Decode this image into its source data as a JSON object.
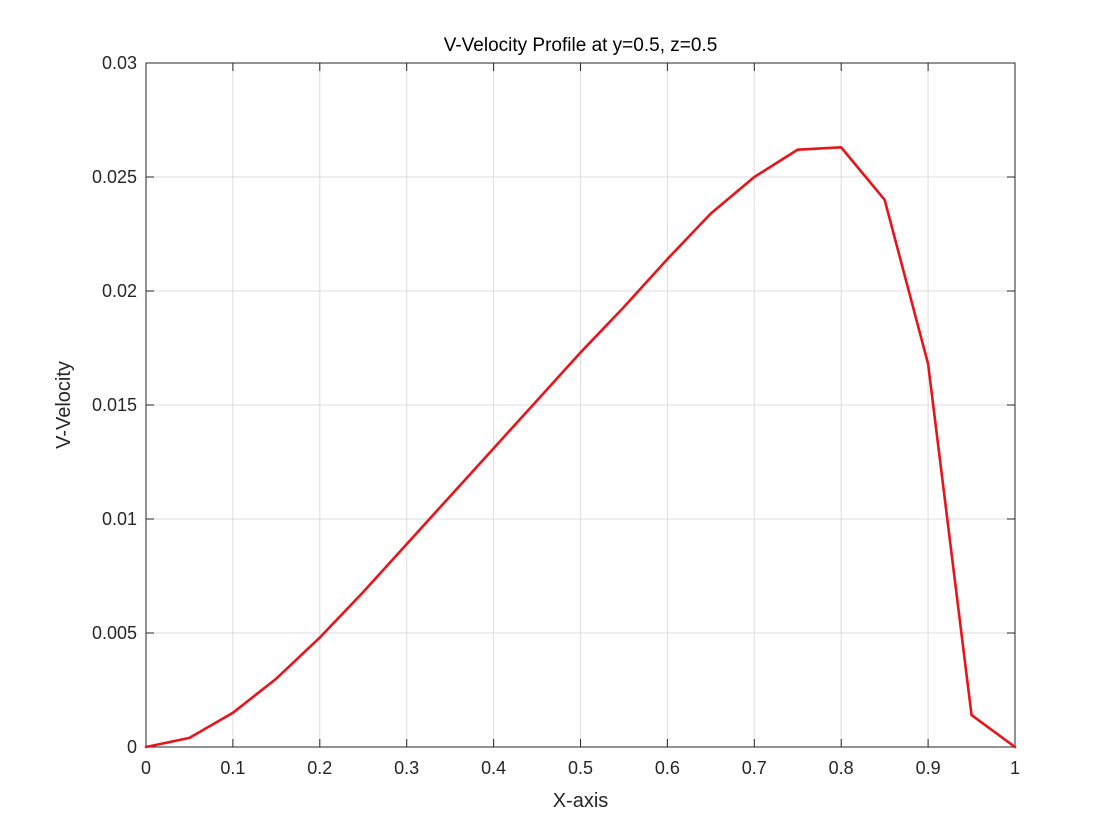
{
  "chart_data": {
    "type": "line",
    "title": "V-Velocity Profile at y=0.5, z=0.5",
    "xlabel": "X-axis",
    "ylabel": "V-Velocity",
    "xlim": [
      0,
      1
    ],
    "ylim": [
      0,
      0.03
    ],
    "xticks": [
      0,
      0.1,
      0.2,
      0.3,
      0.4,
      0.5,
      0.6,
      0.7,
      0.8,
      0.9,
      1
    ],
    "xtick_labels": [
      "0",
      "0.1",
      "0.2",
      "0.3",
      "0.4",
      "0.5",
      "0.6",
      "0.7",
      "0.8",
      "0.9",
      "1"
    ],
    "yticks": [
      0,
      0.005,
      0.01,
      0.015,
      0.02,
      0.025,
      0.03
    ],
    "ytick_labels": [
      "0",
      "0.005",
      "0.01",
      "0.015",
      "0.02",
      "0.025",
      "0.03"
    ],
    "grid": true,
    "series": [
      {
        "color": "#e8141a",
        "x": [
          0,
          0.05,
          0.1,
          0.15,
          0.2,
          0.25,
          0.3,
          0.35,
          0.4,
          0.45,
          0.5,
          0.55,
          0.6,
          0.65,
          0.7,
          0.75,
          0.8,
          0.85,
          0.9,
          0.95,
          1
        ],
        "y": [
          0,
          0.0004,
          0.0015,
          0.003,
          0.0048,
          0.0068,
          0.0089,
          0.011,
          0.0131,
          0.0152,
          0.0173,
          0.0193,
          0.0214,
          0.0234,
          0.025,
          0.0262,
          0.0263,
          0.024,
          0.0168,
          0.0014,
          0
        ]
      }
    ]
  }
}
